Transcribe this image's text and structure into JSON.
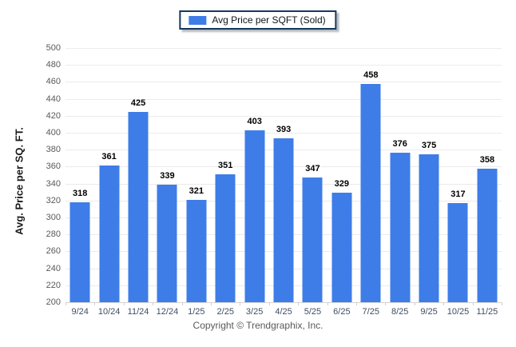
{
  "legend": {
    "label": "Avg Price per SQFT (Sold)",
    "swatch_color": "#3e7de8"
  },
  "chart_data": {
    "type": "bar",
    "title": "Avg Price per SQFT (Sold)",
    "categories": [
      "9/24",
      "10/24",
      "11/24",
      "12/24",
      "1/25",
      "2/25",
      "3/25",
      "4/25",
      "5/25",
      "6/25",
      "7/25",
      "8/25",
      "9/25",
      "10/25",
      "11/25"
    ],
    "values": [
      318,
      361,
      425,
      339,
      321,
      351,
      403,
      393,
      347,
      329,
      458,
      376,
      375,
      317,
      358
    ],
    "xlabel": "",
    "ylabel": "Avg. Price per SQ. FT.",
    "ylim": [
      200,
      500
    ],
    "ytick_step": 20,
    "bar_color": "#3e7de8",
    "grid": true,
    "legend_position": "top",
    "data_labels": true
  },
  "footer": {
    "copyright": "Copyright © Trendgraphix, Inc."
  }
}
